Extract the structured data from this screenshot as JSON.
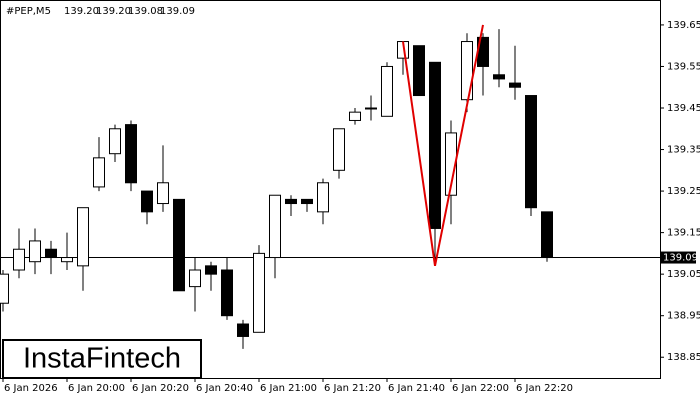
{
  "chart_data": {
    "type": "candlestick",
    "symbol": "#PEP,M5",
    "header_ohlc": [
      "139.20",
      "139.20",
      "139.08",
      "139.09"
    ],
    "categories": [
      "6 Jan 2026",
      null,
      null,
      null,
      "6 Jan 20:00",
      null,
      null,
      null,
      "6 Jan 20:20",
      null,
      null,
      null,
      "6 Jan 20:40",
      null,
      null,
      null,
      "6 Jan 21:00",
      null,
      null,
      null,
      "6 Jan 21:20",
      null,
      null,
      null,
      "6 Jan 21:40",
      null,
      null,
      null,
      "6 Jan 22:00",
      null,
      null,
      null,
      "6 Jan 22:20",
      null,
      null
    ],
    "open": [
      138.98,
      139.06,
      139.08,
      139.11,
      139.08,
      139.07,
      139.26,
      139.34,
      139.41,
      139.25,
      139.22,
      139.23,
      139.02,
      139.07,
      139.06,
      138.93,
      138.91,
      139.09,
      139.23,
      139.23,
      139.2,
      139.3,
      139.42,
      139.45,
      139.43,
      139.57,
      139.6,
      139.56,
      139.24,
      139.47,
      139.62,
      139.53,
      139.51,
      139.48,
      139.2
    ],
    "high": [
      139.06,
      139.16,
      139.16,
      139.13,
      139.15,
      139.21,
      139.38,
      139.41,
      139.42,
      139.25,
      139.36,
      139.23,
      139.09,
      139.08,
      139.09,
      138.94,
      139.12,
      139.24,
      139.24,
      139.23,
      139.28,
      139.4,
      139.45,
      139.48,
      139.56,
      139.61,
      139.6,
      139.56,
      139.42,
      139.63,
      139.63,
      139.64,
      139.6,
      139.48,
      139.2
    ],
    "low": [
      138.96,
      139.04,
      139.05,
      139.05,
      139.06,
      139.01,
      139.25,
      139.32,
      139.25,
      139.17,
      139.2,
      139.01,
      138.96,
      139.01,
      138.94,
      138.87,
      138.91,
      139.04,
      139.19,
      139.2,
      139.17,
      139.28,
      139.41,
      139.42,
      139.43,
      139.53,
      139.48,
      139.07,
      139.17,
      139.44,
      139.48,
      139.5,
      139.47,
      139.19,
      139.08
    ],
    "close": [
      139.05,
      139.11,
      139.13,
      139.09,
      139.09,
      139.21,
      139.33,
      139.4,
      139.27,
      139.2,
      139.27,
      139.01,
      139.06,
      139.05,
      138.95,
      138.9,
      139.1,
      139.24,
      139.22,
      139.22,
      139.27,
      139.4,
      139.44,
      139.45,
      139.55,
      139.61,
      139.48,
      139.16,
      139.39,
      139.61,
      139.55,
      139.52,
      139.5,
      139.21,
      139.09
    ],
    "up_color": "#ffffff",
    "down_color": "#000000",
    "ylim": [
      138.8,
      139.71
    ],
    "yticks": [
      138.85,
      138.95,
      139.05,
      139.15,
      139.25,
      139.35,
      139.45,
      139.55,
      139.65
    ],
    "current_price": 139.09,
    "pattern": {
      "color": "#e00000",
      "points": [
        [
          25,
          139.61
        ],
        [
          27,
          139.07
        ],
        [
          30,
          139.65
        ]
      ]
    },
    "watermark": "InstaFintech"
  }
}
